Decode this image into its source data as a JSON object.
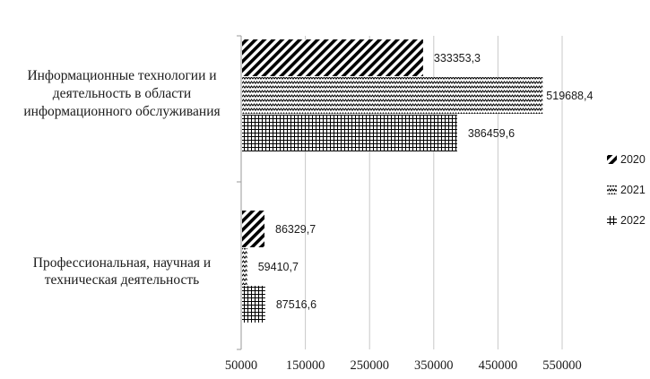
{
  "chart_data": {
    "type": "bar",
    "orientation": "horizontal",
    "categories": [
      [
        "Информационные технологии и",
        "деятельность в области",
        "информационного обслуживания"
      ],
      [
        "Профессиональная, научная и",
        "техническая деятельность"
      ]
    ],
    "series": [
      {
        "name": "2020",
        "pattern": "diagonal-stripes",
        "values": [
          333353.3,
          86329.7
        ],
        "labels": [
          "333353,3",
          "86329,7"
        ]
      },
      {
        "name": "2021",
        "pattern": "zigzag",
        "values": [
          519688.4,
          59410.7
        ],
        "labels": [
          "519688,4",
          "59410,7"
        ]
      },
      {
        "name": "2022",
        "pattern": "grid",
        "values": [
          386459.6,
          87516.6
        ],
        "labels": [
          "386459,6",
          "87516,6"
        ]
      }
    ],
    "xlim": [
      50000,
      550000
    ],
    "xticks": [
      50000,
      150000,
      250000,
      350000,
      450000,
      550000
    ],
    "xtick_labels": [
      "50000",
      "150000",
      "250000",
      "350000",
      "450000",
      "550000"
    ],
    "grid": "vertical",
    "legend": "right",
    "colors": {
      "bar": "#000000",
      "grid": "#c8c8c8",
      "axis": "#9a9a9a"
    }
  }
}
